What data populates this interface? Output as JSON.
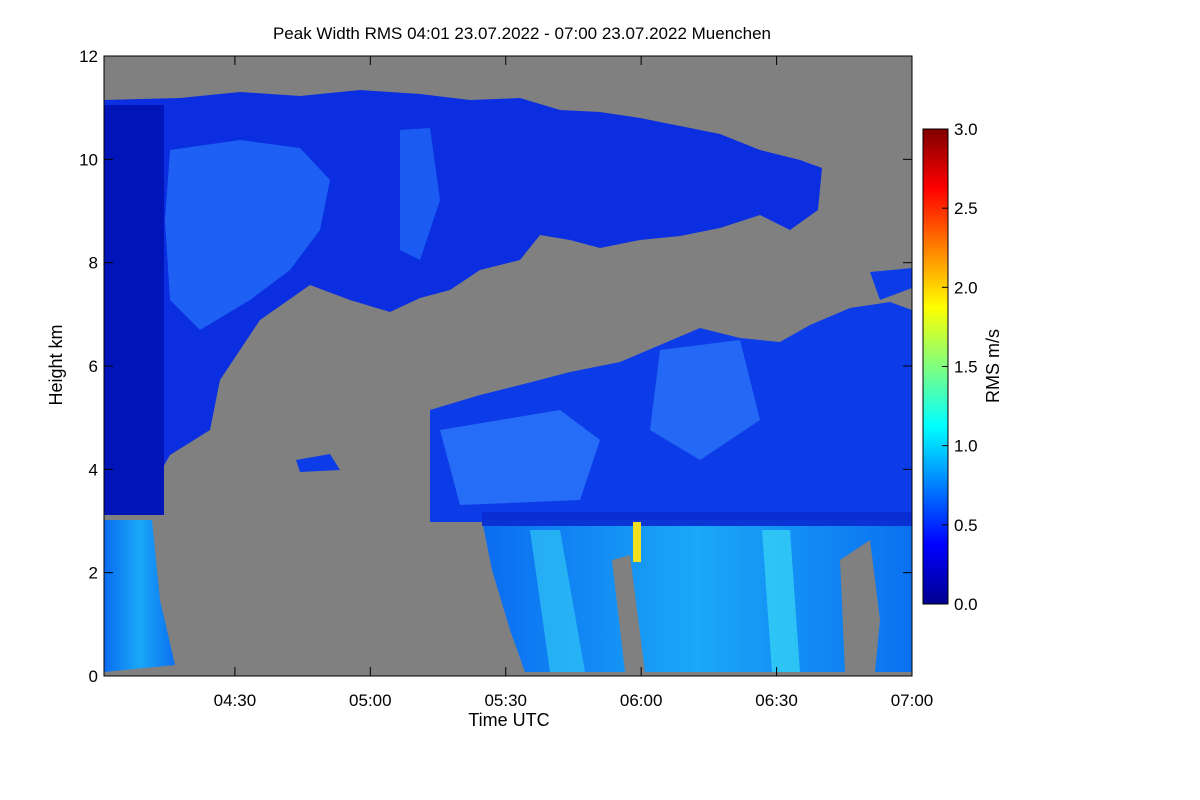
{
  "chart_data": {
    "type": "heatmap",
    "title": "Peak Width RMS   04:01 23.07.2022 - 07:00 23.07.2022 Muenchen",
    "xlabel": "Time UTC",
    "ylabel": "Height km",
    "xlim": [
      "04:01",
      "07:00"
    ],
    "ylim": [
      0,
      12
    ],
    "xticks": [
      "04:30",
      "05:00",
      "05:30",
      "06:00",
      "06:30",
      "07:00"
    ],
    "yticks": [
      "0",
      "2",
      "4",
      "6",
      "8",
      "10",
      "12"
    ],
    "colorbar": {
      "label": "RMS m/s",
      "range": [
        0.0,
        3.0
      ],
      "ticks": [
        "0.0",
        "0.5",
        "1.0",
        "1.5",
        "2.0",
        "2.5",
        "3.0"
      ],
      "colormap": "jet"
    },
    "no_data_color": "#808080",
    "regions": [
      {
        "region": "upper-cloud",
        "time": [
          "04:01",
          "06:48"
        ],
        "height_km": [
          7.0,
          11.3
        ],
        "rms_m_s": [
          0.1,
          1.0
        ]
      },
      {
        "region": "mid-left-cloud",
        "time": [
          "04:01",
          "04:15"
        ],
        "height_km": [
          3.0,
          7.5
        ],
        "rms_m_s": [
          0.1,
          0.6
        ]
      },
      {
        "region": "mid-right-cloud",
        "time": [
          "05:36",
          "07:00"
        ],
        "height_km": [
          3.0,
          6.8
        ],
        "rms_m_s": [
          0.2,
          1.0
        ]
      },
      {
        "region": "lower-left-precip",
        "time": [
          "04:01",
          "04:08"
        ],
        "height_km": [
          0.0,
          3.0
        ],
        "rms_m_s": [
          0.6,
          1.2
        ]
      },
      {
        "region": "lower-right-precip",
        "time": [
          "05:35",
          "07:00"
        ],
        "height_km": [
          0.0,
          3.0
        ],
        "rms_m_s": [
          0.5,
          2.0
        ]
      }
    ]
  }
}
